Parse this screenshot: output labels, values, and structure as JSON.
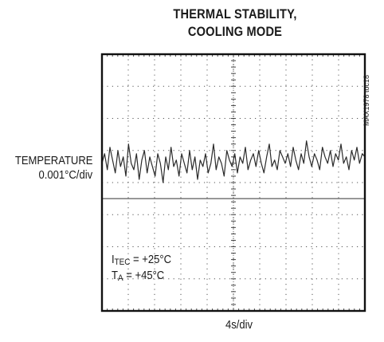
{
  "title_line1": "THERMAL STABILITY,",
  "title_line2": "COOLING MODE",
  "ylabel_line1": "TEMPERATURE",
  "ylabel_line2": "0.001°C/div",
  "xlabel": "4s/div",
  "figure_id": "MAX1978 toc18",
  "annotation1": {
    "prefix": "I",
    "sub": "TEC",
    "rest": " = +25°C"
  },
  "annotation2": {
    "prefix": "T",
    "sub": "A",
    "rest": " = +45°C"
  },
  "chart_data": {
    "type": "line",
    "title": "THERMAL STABILITY, COOLING MODE",
    "xlabel": "4s/div",
    "ylabel": "TEMPERATURE 0.001°C/div",
    "x_divisions": 10,
    "y_divisions": 8,
    "grid": "dotted",
    "reference_level_div": 4.5,
    "series": [
      {
        "values": [
          4.6,
          4.9,
          4.4,
          5.1,
          4.7,
          4.3,
          5.0,
          4.5,
          4.8,
          4.2,
          5.2,
          4.6,
          4.4,
          4.9,
          4.1,
          4.7,
          5.0,
          4.3,
          4.8,
          4.5,
          4.2,
          4.9,
          4.6,
          4.0,
          4.8,
          4.4,
          5.1,
          4.5,
          4.7,
          4.2,
          4.9,
          4.6,
          4.3,
          5.0,
          4.4,
          4.8,
          4.1,
          4.7,
          4.5,
          4.9,
          4.3,
          4.6,
          5.2,
          4.4,
          4.8,
          4.6,
          4.2,
          5.0,
          4.7,
          4.5,
          4.9,
          4.3,
          4.8,
          4.6,
          5.1,
          4.4,
          4.7,
          4.9,
          4.5,
          5.0,
          4.6,
          4.3,
          4.8,
          5.2,
          4.5,
          4.7,
          4.4,
          5.0,
          4.8,
          4.6,
          4.9,
          4.5,
          5.1,
          4.7,
          4.4,
          4.9,
          4.6,
          5.3,
          4.8,
          4.5,
          4.9,
          4.7,
          4.4,
          5.1,
          4.8,
          4.6,
          5.0,
          4.5,
          4.9,
          4.7,
          5.2,
          4.6,
          4.8,
          4.4,
          5.0,
          4.7,
          5.1,
          4.6,
          4.9,
          4.8
        ]
      }
    ]
  }
}
